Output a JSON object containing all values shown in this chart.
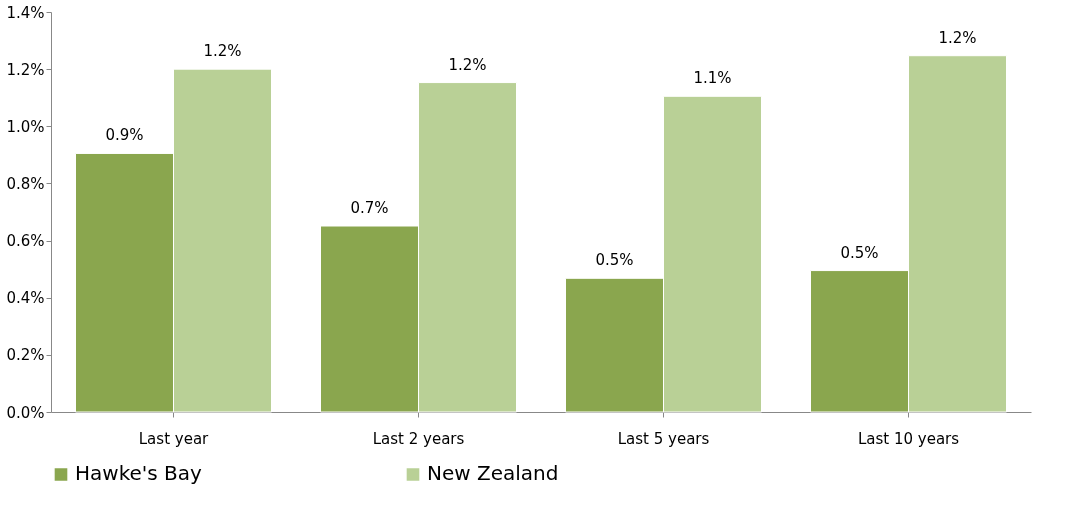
{
  "chart_data": {
    "type": "bar",
    "categories": [
      "Last year",
      "Last 2 years",
      "Last 5 years",
      "Last 10 years"
    ],
    "series": [
      {
        "name": "Hawke's Bay",
        "color": "#8aa64e",
        "values": [
          0.905,
          0.651,
          0.468,
          0.495
        ],
        "value_labels": [
          "0.9%",
          "0.7%",
          "0.5%",
          "0.5%"
        ]
      },
      {
        "name": "New Zealand",
        "color": "#b9d096",
        "values": [
          1.2,
          1.153,
          1.105,
          1.247
        ],
        "value_labels": [
          "1.2%",
          "1.2%",
          "1.1%",
          "1.2%"
        ]
      }
    ],
    "ylim": [
      0,
      1.4
    ],
    "yticks": [
      {
        "value": 0,
        "label": "0.0%"
      },
      {
        "value": 0.2,
        "label": "0.2%"
      },
      {
        "value": 0.4,
        "label": "0.4%"
      },
      {
        "value": 0.6,
        "label": "0.6%"
      },
      {
        "value": 0.8,
        "label": "0.8%"
      },
      {
        "value": 1.0,
        "label": "1.0%"
      },
      {
        "value": 1.2,
        "label": "1.2%"
      },
      {
        "value": 1.4,
        "label": "1.4%"
      }
    ],
    "grid": false,
    "legend": "bottom"
  }
}
